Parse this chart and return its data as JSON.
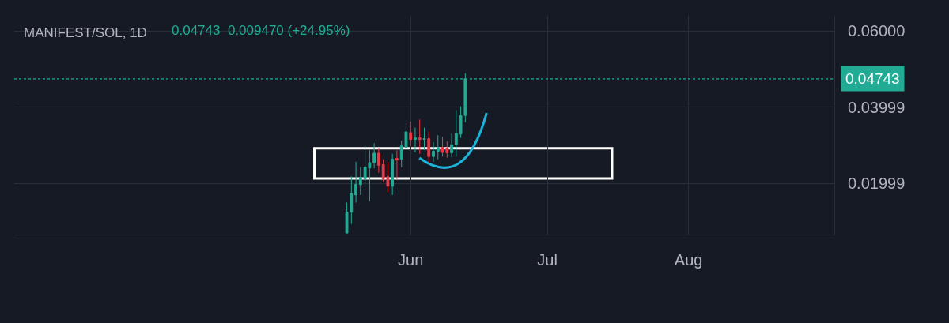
{
  "chart_data": {
    "type": "candlestick",
    "title": "MANIFEST/SOL, 1D",
    "annotations": [
      "0.04743  0.009470 (+24.95%)"
    ],
    "x": [
      "--05-18",
      "--05-19",
      "--05-20",
      "--05-21",
      "--05-22",
      "--05-23",
      "--05-24",
      "--05-25",
      "--05-26",
      "--05-27",
      "--05-28",
      "--05-29",
      "--05-30",
      "--05-31",
      "--06-01",
      "--06-02",
      "--06-03",
      "--06-04",
      "--06-05",
      "--06-06",
      "--06-07",
      "--06-08",
      "--06-09",
      "--06-10",
      "--06-11",
      "--06-12",
      "--06-13"
    ],
    "ohlc": [
      [
        0.0069,
        0.0149,
        0.0067,
        0.0124
      ],
      [
        0.0124,
        0.0218,
        0.0093,
        0.0173
      ],
      [
        0.0169,
        0.0256,
        0.0149,
        0.0197
      ],
      [
        0.0196,
        0.0242,
        0.0169,
        0.0215
      ],
      [
        0.0211,
        0.0298,
        0.019,
        0.0242
      ],
      [
        0.024,
        0.0287,
        0.0152,
        0.0254
      ],
      [
        0.0254,
        0.0305,
        0.0239,
        0.0279
      ],
      [
        0.0279,
        0.0291,
        0.0228,
        0.0247
      ],
      [
        0.0249,
        0.0263,
        0.0204,
        0.0211
      ],
      [
        0.0217,
        0.0256,
        0.0176,
        0.0192
      ],
      [
        0.0192,
        0.0277,
        0.0169,
        0.0263
      ],
      [
        0.0265,
        0.0287,
        0.0211,
        0.0261
      ],
      [
        0.0263,
        0.0312,
        0.0242,
        0.0298
      ],
      [
        0.0294,
        0.0358,
        0.0287,
        0.0335
      ],
      [
        0.0333,
        0.0362,
        0.0298,
        0.0315
      ],
      [
        0.0315,
        0.0346,
        0.0281,
        0.0319
      ],
      [
        0.0319,
        0.0367,
        0.0277,
        0.0315
      ],
      [
        0.0315,
        0.0346,
        0.0287,
        0.0317
      ],
      [
        0.0317,
        0.0336,
        0.0253,
        0.027
      ],
      [
        0.027,
        0.0308,
        0.0256,
        0.0284
      ],
      [
        0.0284,
        0.0326,
        0.0263,
        0.0294
      ],
      [
        0.0294,
        0.0322,
        0.027,
        0.0281
      ],
      [
        0.0292,
        0.031,
        0.0267,
        0.028
      ],
      [
        0.028,
        0.033,
        0.0268,
        0.0301
      ],
      [
        0.0301,
        0.0392,
        0.027,
        0.0331
      ],
      [
        0.0329,
        0.0402,
        0.0319,
        0.0378
      ],
      [
        0.0378,
        0.0489,
        0.036,
        0.04743
      ]
    ],
    "colors": [
      "#22ab94",
      "#22ab94",
      "#22ab94",
      "#22ab94",
      "#22ab94",
      "#22ab94",
      "#22ab94",
      "#f23645",
      "#f23645",
      "#f23645",
      "#22ab94",
      "#f23645",
      "#22ab94",
      "#22ab94",
      "#f23645",
      "#22ab94",
      "#f23645",
      "#22ab94",
      "#f23645",
      "#22ab94",
      "#22ab94",
      "#f23645",
      "#f23645",
      "#22ab94",
      "#22ab94",
      "#22ab94",
      "#22ab94"
    ],
    "xlim": [
      "--03-06",
      "--09-02"
    ],
    "xticks": [
      {
        "value": "--06-01",
        "label": "Jun"
      },
      {
        "value": "--07-01",
        "label": "Jul"
      },
      {
        "value": "--08-01",
        "label": "Aug"
      }
    ],
    "ylim": [
      0.0065,
      0.064
    ],
    "yticks": [
      0.01999,
      0.03999,
      {
        "value": 0.06,
        "label": "0.06000"
      }
    ],
    "grid": true,
    "ref_lines": [
      {
        "axis": "y",
        "value": 0.04743,
        "label": "0.04743",
        "color": "#22ab94",
        "line_style": "dotted"
      }
    ]
  }
}
